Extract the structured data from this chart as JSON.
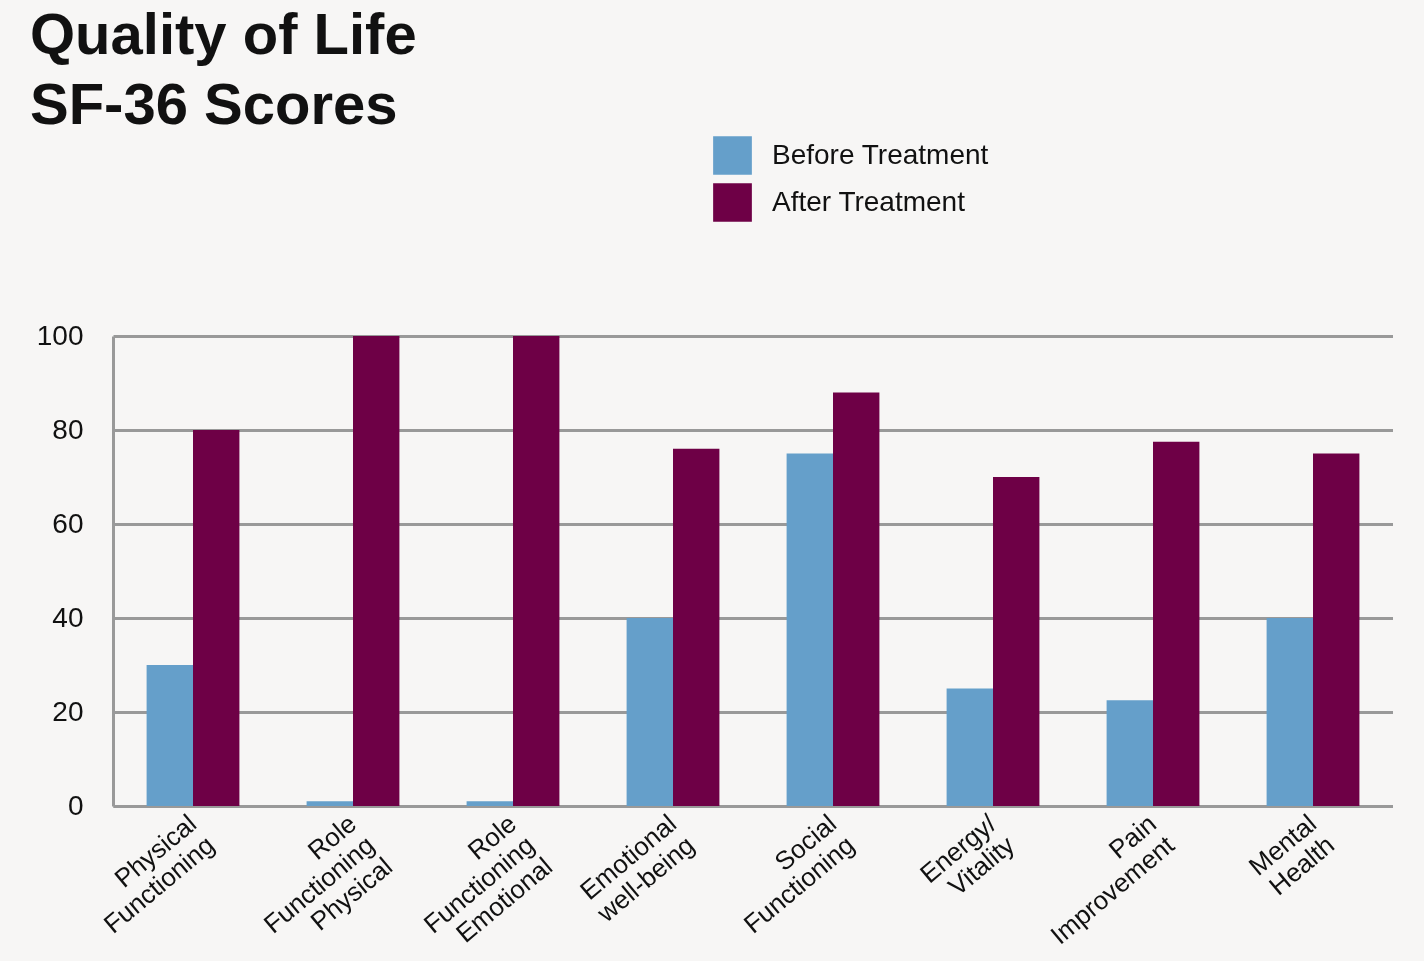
{
  "chart_data": {
    "type": "bar",
    "title": "Quality of Life\nSF-36 Scores",
    "categories": [
      "Physical\nFunctioning",
      "Role\nFunctioning\nPhysical",
      "Role\nFunctioning\nEmotional",
      "Emotional\nwell-being",
      "Social\nFunctioning",
      "Energy/\nVitality",
      "Pain\nImprovement",
      "Mental\nHealth"
    ],
    "series": [
      {
        "name": "Before Treatment",
        "color": "#659fca",
        "values": [
          30,
          1,
          1,
          40,
          75,
          25,
          22.5,
          40
        ]
      },
      {
        "name": "After Treatment",
        "color": "#6e0046",
        "values": [
          80,
          100,
          100,
          76,
          88,
          70,
          77.5,
          75
        ]
      }
    ],
    "ylim": [
      0,
      100
    ],
    "yticks": [
      0,
      20,
      40,
      60,
      80,
      100
    ],
    "grid": "y",
    "legend": "top"
  }
}
